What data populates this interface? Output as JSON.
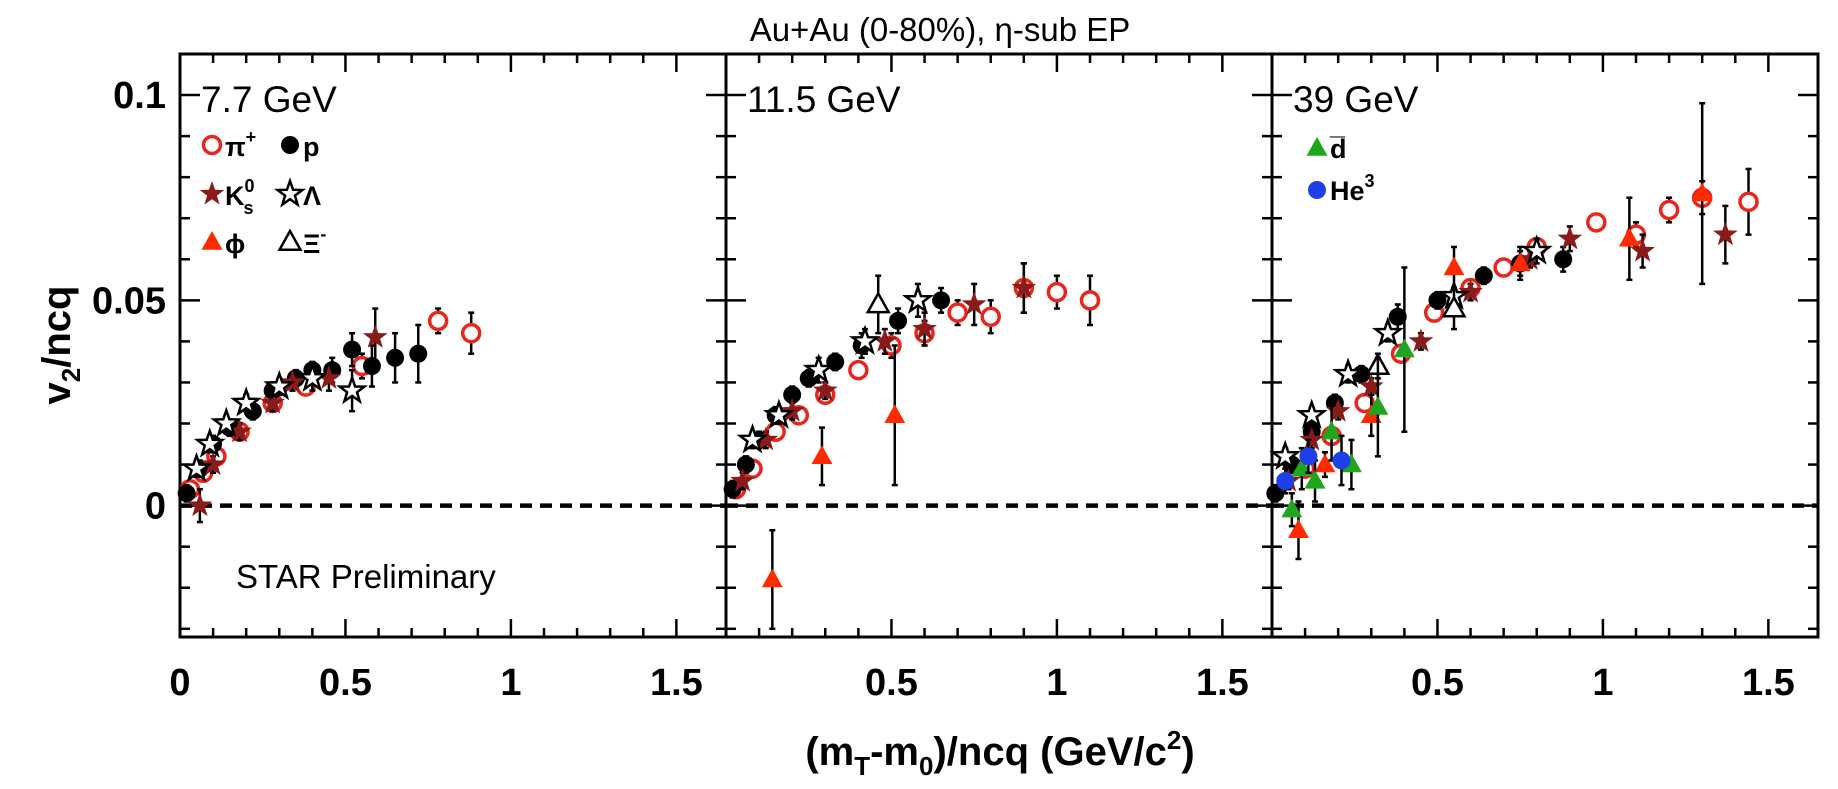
{
  "chart_data": {
    "type": "scatter",
    "title": "Au+Au (0-80%), η-sub EP",
    "xlabel": "(m_T-m_0)/ncq (GeV/c^2)",
    "ylabel": "v2/ncq",
    "xlim": [
      0,
      1.65
    ],
    "ylim": [
      -0.032,
      0.11
    ],
    "x_ticks": [
      "0",
      "0.5",
      "1",
      "1.5"
    ],
    "y_ticks": [
      "0",
      "0.05",
      "0.1"
    ],
    "annotation": "STAR Preliminary",
    "legend": [
      {
        "key": "piplus",
        "label": "π",
        "sup": "+"
      },
      {
        "key": "p",
        "label": "p"
      },
      {
        "key": "k0s",
        "label": "K",
        "sup": "0",
        "sub": "s"
      },
      {
        "key": "lambda",
        "label": "Λ"
      },
      {
        "key": "phi",
        "label": "ϕ"
      },
      {
        "key": "xi",
        "label": "Ξ",
        "sup": "-"
      },
      {
        "key": "dbar",
        "label": "d̅"
      },
      {
        "key": "he3",
        "label": "He",
        "sup": "3"
      }
    ],
    "panels": [
      {
        "label": "7.7 GeV",
        "series": [
          {
            "name": "π+",
            "marker": "open-circle",
            "color": "#e8261e",
            "points": [
              [
                0.03,
                0.004,
                0.002
              ],
              [
                0.07,
                0.008,
                0.002
              ],
              [
                0.11,
                0.012,
                0.002
              ],
              [
                0.18,
                0.018,
                0.002
              ],
              [
                0.28,
                0.025,
                0.002
              ],
              [
                0.38,
                0.029,
                0.002
              ],
              [
                0.55,
                0.034,
                0.003
              ],
              [
                0.78,
                0.045,
                0.003
              ],
              [
                0.88,
                0.042,
                0.005
              ]
            ]
          },
          {
            "name": "p",
            "marker": "filled-circle",
            "color": "#000000",
            "points": [
              [
                0.02,
                0.003,
                0.002
              ],
              [
                0.06,
                0.009,
                0.002
              ],
              [
                0.1,
                0.015,
                0.002
              ],
              [
                0.15,
                0.019,
                0.002
              ],
              [
                0.22,
                0.023,
                0.002
              ],
              [
                0.28,
                0.028,
                0.002
              ],
              [
                0.35,
                0.031,
                0.002
              ],
              [
                0.4,
                0.033,
                0.002
              ],
              [
                0.46,
                0.033,
                0.003
              ],
              [
                0.52,
                0.038,
                0.004
              ],
              [
                0.58,
                0.034,
                0.005
              ],
              [
                0.65,
                0.036,
                0.006
              ],
              [
                0.72,
                0.037,
                0.007
              ]
            ]
          },
          {
            "name": "K0s",
            "marker": "filled-star",
            "color": "#8b1a1a",
            "points": [
              [
                0.06,
                0.0,
                0.004
              ],
              [
                0.1,
                0.01,
                0.002
              ],
              [
                0.18,
                0.018,
                0.002
              ],
              [
                0.28,
                0.025,
                0.002
              ],
              [
                0.34,
                0.03,
                0.002
              ],
              [
                0.45,
                0.031,
                0.003
              ],
              [
                0.59,
                0.041,
                0.007
              ]
            ]
          },
          {
            "name": "Λ",
            "marker": "open-star",
            "color": "#000000",
            "points": [
              [
                0.05,
                0.009,
                0.002
              ],
              [
                0.09,
                0.015,
                0.002
              ],
              [
                0.14,
                0.02,
                0.002
              ],
              [
                0.2,
                0.025,
                0.002
              ],
              [
                0.3,
                0.029,
                0.002
              ],
              [
                0.4,
                0.031,
                0.003
              ],
              [
                0.52,
                0.028,
                0.005
              ]
            ]
          }
        ]
      },
      {
        "label": "11.5 GeV",
        "series": [
          {
            "name": "π+",
            "marker": "open-circle",
            "color": "#e8261e",
            "points": [
              [
                0.03,
                0.004,
                0.002
              ],
              [
                0.08,
                0.009,
                0.002
              ],
              [
                0.15,
                0.018,
                0.002
              ],
              [
                0.22,
                0.022,
                0.002
              ],
              [
                0.3,
                0.027,
                0.002
              ],
              [
                0.4,
                0.033,
                0.002
              ],
              [
                0.5,
                0.039,
                0.003
              ],
              [
                0.6,
                0.042,
                0.003
              ],
              [
                0.7,
                0.047,
                0.003
              ],
              [
                0.8,
                0.046,
                0.004
              ],
              [
                0.9,
                0.053,
                0.006
              ],
              [
                1.0,
                0.052,
                0.004
              ],
              [
                1.1,
                0.05,
                0.006
              ]
            ]
          },
          {
            "name": "p",
            "marker": "filled-circle",
            "color": "#000000",
            "points": [
              [
                0.02,
                0.004,
                0.002
              ],
              [
                0.06,
                0.01,
                0.002
              ],
              [
                0.1,
                0.016,
                0.002
              ],
              [
                0.15,
                0.022,
                0.002
              ],
              [
                0.2,
                0.027,
                0.002
              ],
              [
                0.25,
                0.031,
                0.002
              ],
              [
                0.33,
                0.035,
                0.002
              ],
              [
                0.41,
                0.039,
                0.003
              ],
              [
                0.52,
                0.045,
                0.003
              ],
              [
                0.65,
                0.05,
                0.003
              ]
            ]
          },
          {
            "name": "K0s",
            "marker": "filled-star",
            "color": "#8b1a1a",
            "points": [
              [
                0.05,
                0.006,
                0.002
              ],
              [
                0.12,
                0.016,
                0.002
              ],
              [
                0.2,
                0.023,
                0.002
              ],
              [
                0.3,
                0.028,
                0.002
              ],
              [
                0.48,
                0.04,
                0.003
              ],
              [
                0.6,
                0.043,
                0.004
              ],
              [
                0.75,
                0.049,
                0.005
              ],
              [
                0.9,
                0.053,
                0.006
              ]
            ]
          },
          {
            "name": "Λ",
            "marker": "open-star",
            "color": "#000000",
            "points": [
              [
                0.08,
                0.016,
                0.002
              ],
              [
                0.16,
                0.022,
                0.002
              ],
              [
                0.28,
                0.033,
                0.003
              ],
              [
                0.42,
                0.04,
                0.003
              ],
              [
                0.58,
                0.05,
                0.004
              ]
            ]
          },
          {
            "name": "Ξ-",
            "marker": "open-triangle",
            "color": "#000000",
            "points": [
              [
                0.46,
                0.049,
                0.007
              ]
            ]
          },
          {
            "name": "ϕ",
            "marker": "filled-triangle",
            "color": "#ff2a00",
            "points": [
              [
                0.14,
                -0.018,
                0.012
              ],
              [
                0.29,
                0.012,
                0.007
              ],
              [
                0.51,
                0.022,
                0.017
              ]
            ]
          }
        ]
      },
      {
        "label": "39 GeV",
        "series": [
          {
            "name": "π+",
            "marker": "open-circle",
            "color": "#e8261e",
            "points": [
              [
                0.1,
                0.009,
                0.002
              ],
              [
                0.18,
                0.017,
                0.002
              ],
              [
                0.28,
                0.025,
                0.002
              ],
              [
                0.39,
                0.037,
                0.002
              ],
              [
                0.49,
                0.047,
                0.002
              ],
              [
                0.6,
                0.053,
                0.002
              ],
              [
                0.7,
                0.058,
                0.002
              ],
              [
                0.8,
                0.063,
                0.002
              ],
              [
                0.98,
                0.069,
                0.002
              ],
              [
                1.1,
                0.066,
                0.003
              ],
              [
                1.2,
                0.072,
                0.003
              ],
              [
                1.3,
                0.075,
                0.004
              ],
              [
                1.44,
                0.074,
                0.008
              ]
            ]
          },
          {
            "name": "p",
            "marker": "filled-circle",
            "color": "#000000",
            "points": [
              [
                0.01,
                0.003,
                0.002
              ],
              [
                0.06,
                0.01,
                0.002
              ],
              [
                0.12,
                0.018,
                0.002
              ],
              [
                0.19,
                0.025,
                0.002
              ],
              [
                0.27,
                0.032,
                0.002
              ],
              [
                0.38,
                0.046,
                0.003
              ],
              [
                0.5,
                0.05,
                0.002
              ],
              [
                0.64,
                0.056,
                0.002
              ],
              [
                0.75,
                0.059,
                0.003
              ],
              [
                0.88,
                0.06,
                0.003
              ]
            ]
          },
          {
            "name": "K0s",
            "marker": "filled-star",
            "color": "#8b1a1a",
            "points": [
              [
                0.05,
                0.006,
                0.002
              ],
              [
                0.12,
                0.016,
                0.002
              ],
              [
                0.2,
                0.023,
                0.002
              ],
              [
                0.3,
                0.029,
                0.002
              ],
              [
                0.45,
                0.04,
                0.002
              ],
              [
                0.6,
                0.052,
                0.002
              ],
              [
                0.78,
                0.06,
                0.002
              ],
              [
                0.9,
                0.065,
                0.003
              ],
              [
                1.12,
                0.062,
                0.004
              ],
              [
                1.37,
                0.066,
                0.007
              ]
            ]
          },
          {
            "name": "Λ",
            "marker": "open-star",
            "color": "#000000",
            "points": [
              [
                0.04,
                0.012,
                0.002
              ],
              [
                0.12,
                0.022,
                0.002
              ],
              [
                0.23,
                0.032,
                0.002
              ],
              [
                0.35,
                0.042,
                0.002
              ],
              [
                0.55,
                0.051,
                0.002
              ],
              [
                0.8,
                0.062,
                0.003
              ]
            ]
          },
          {
            "name": "Ξ-",
            "marker": "open-triangle",
            "color": "#000000",
            "points": [
              [
                0.32,
                0.034,
                0.003
              ],
              [
                0.55,
                0.048,
                0.005
              ]
            ]
          },
          {
            "name": "ϕ",
            "marker": "filled-triangle",
            "color": "#ff2a00",
            "points": [
              [
                0.08,
                -0.006,
                0.007
              ],
              [
                0.16,
                0.01,
                0.003
              ],
              [
                0.3,
                0.022,
                0.005
              ],
              [
                0.55,
                0.058,
                0.005
              ],
              [
                0.75,
                0.059,
                0.004
              ],
              [
                1.08,
                0.065,
                0.01
              ],
              [
                1.3,
                0.076,
                0.022
              ]
            ]
          },
          {
            "name": "d̅",
            "marker": "filled-triangle",
            "color": "#1fa51f",
            "points": [
              [
                0.06,
                -0.001,
                0.004
              ],
              [
                0.09,
                0.009,
                0.005
              ],
              [
                0.13,
                0.006,
                0.005
              ],
              [
                0.18,
                0.018,
                0.007
              ],
              [
                0.24,
                0.01,
                0.006
              ],
              [
                0.32,
                0.024,
                0.012
              ],
              [
                0.4,
                0.038,
                0.02
              ]
            ]
          },
          {
            "name": "He3",
            "marker": "filled-circle",
            "color": "#1f3fe8",
            "points": [
              [
                0.04,
                0.006,
                0.003
              ],
              [
                0.11,
                0.012,
                0.004
              ],
              [
                0.21,
                0.011,
                0.006
              ]
            ]
          }
        ]
      }
    ]
  }
}
